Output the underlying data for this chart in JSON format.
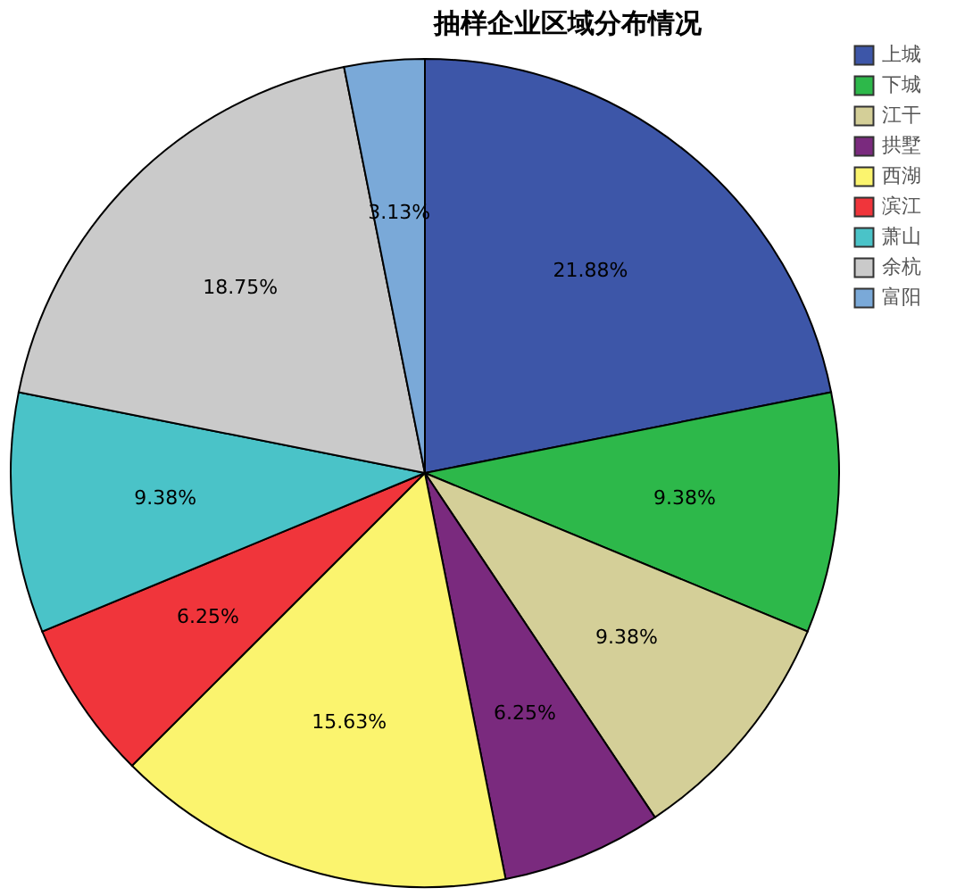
{
  "chart_data": {
    "type": "pie",
    "title": "抽样企业区域分布情况",
    "categories": [
      "上城",
      "下城",
      "江干",
      "拱墅",
      "西湖",
      "滨江",
      "萧山",
      "余杭",
      "富阳"
    ],
    "values": [
      21.88,
      9.38,
      9.38,
      6.25,
      15.63,
      6.25,
      9.38,
      18.75,
      3.13
    ],
    "value_labels": [
      "21.88%",
      "9.38%",
      "9.38%",
      "6.25%",
      "15.63%",
      "6.25%",
      "9.38%",
      "18.75%",
      "3.13%"
    ],
    "colors": [
      "#3d56a8",
      "#2db84a",
      "#d4cf98",
      "#7a2a7e",
      "#fbf46e",
      "#f0353b",
      "#4ac3c8",
      "#cacaca",
      "#7aa9d8"
    ],
    "legend": "top right"
  }
}
